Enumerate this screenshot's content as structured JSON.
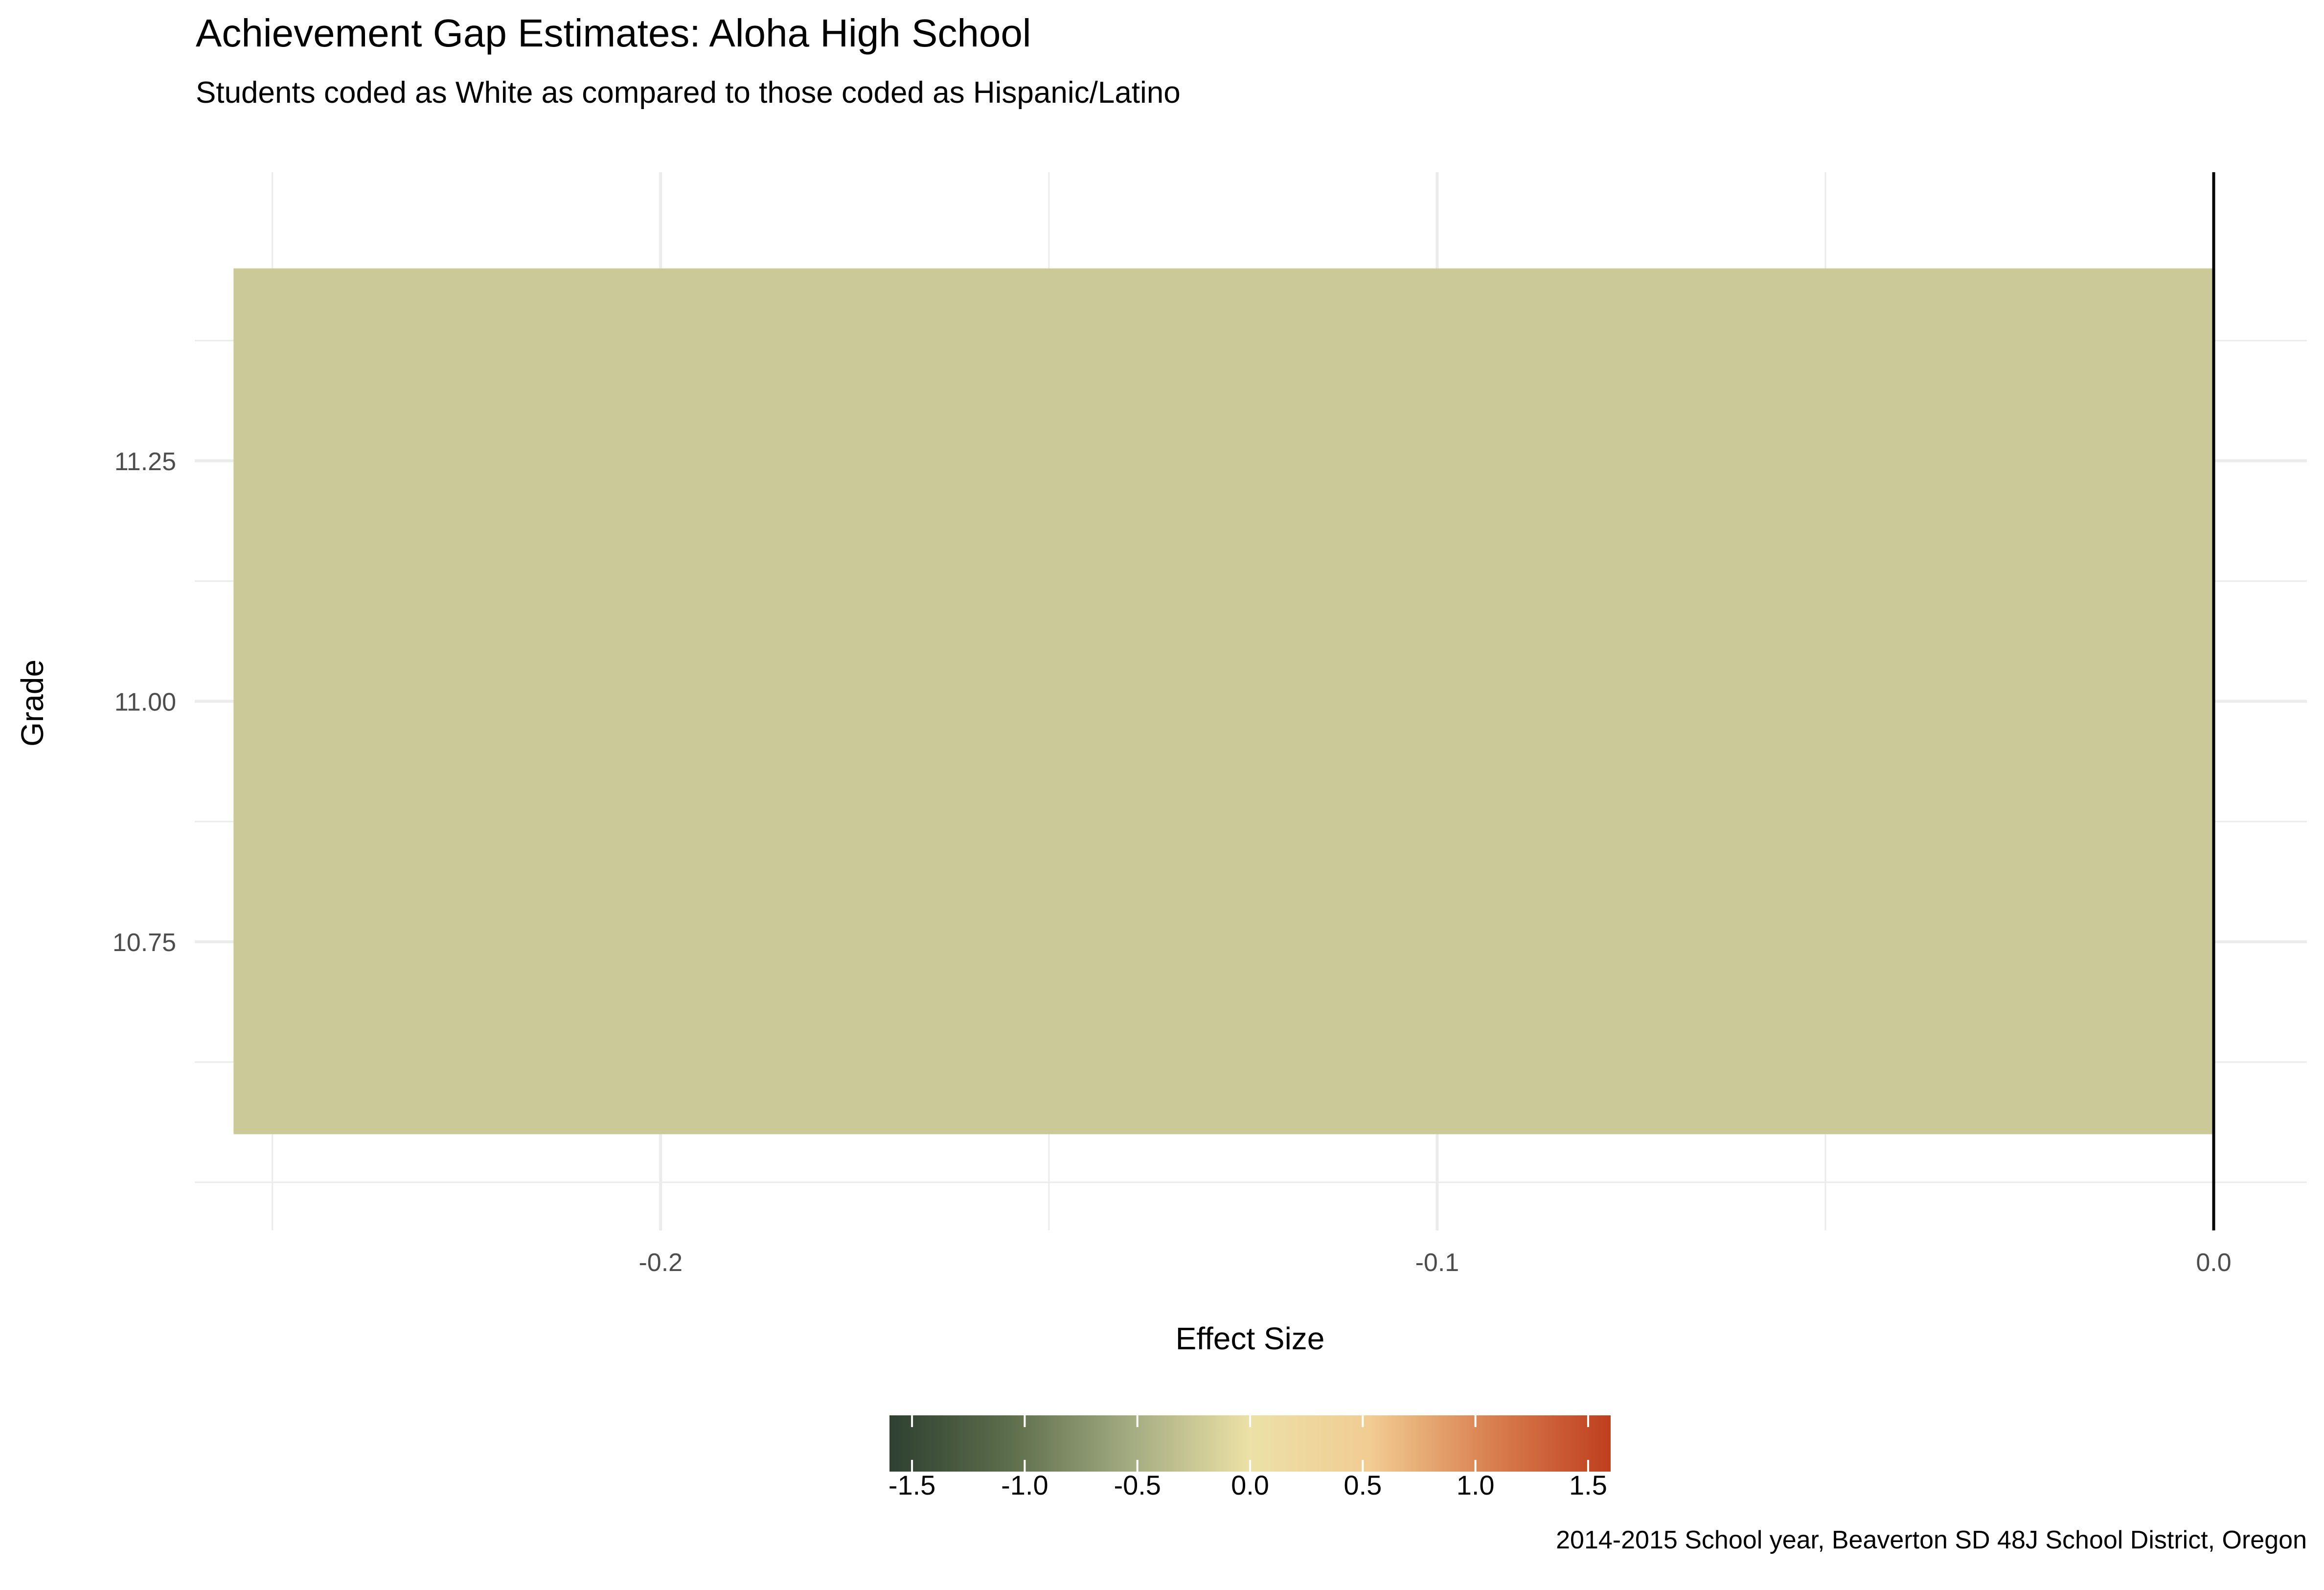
{
  "chart_data": {
    "type": "bar",
    "title": "Achievement Gap Estimates: Aloha High School",
    "subtitle": "Students coded as White as compared to those coded as Hispanic/Latino",
    "xlabel": "Effect Size",
    "ylabel": "Grade",
    "caption": "2014-2015 School year, Beaverton SD 48J School District, Oregon",
    "orientation": "horizontal",
    "bars": [
      {
        "grade": 11,
        "value": -0.255,
        "ymin": 10.55,
        "ymax": 11.45,
        "color": "#cbc997"
      }
    ],
    "xlim": [
      -0.26,
      0.012
    ],
    "ylim": [
      10.55,
      11.45
    ],
    "x_ticks": [
      -0.2,
      -0.1,
      0.0
    ],
    "x_tick_labels": [
      "-0.2",
      "-0.1",
      "0.0"
    ],
    "y_ticks": [
      10.75,
      11.0,
      11.25
    ],
    "y_tick_labels": [
      "10.75",
      "11.00",
      "11.25"
    ],
    "reference_line": 0.0,
    "grid": true,
    "legend": {
      "type": "colorbar",
      "position": "bottom",
      "range": [
        -1.6,
        1.6
      ],
      "ticks": [
        -1.5,
        -1.0,
        -0.5,
        0.0,
        0.5,
        1.0,
        1.5
      ],
      "tick_labels": [
        "-1.5",
        "-1.0",
        "-0.5",
        "0.0",
        "0.5",
        "1.0",
        "1.5"
      ],
      "colors": [
        "#2e4030",
        "#5d6e4c",
        "#a3ab81",
        "#ece1a6",
        "#f1cc93",
        "#d9804f",
        "#bf3f1f"
      ]
    }
  }
}
